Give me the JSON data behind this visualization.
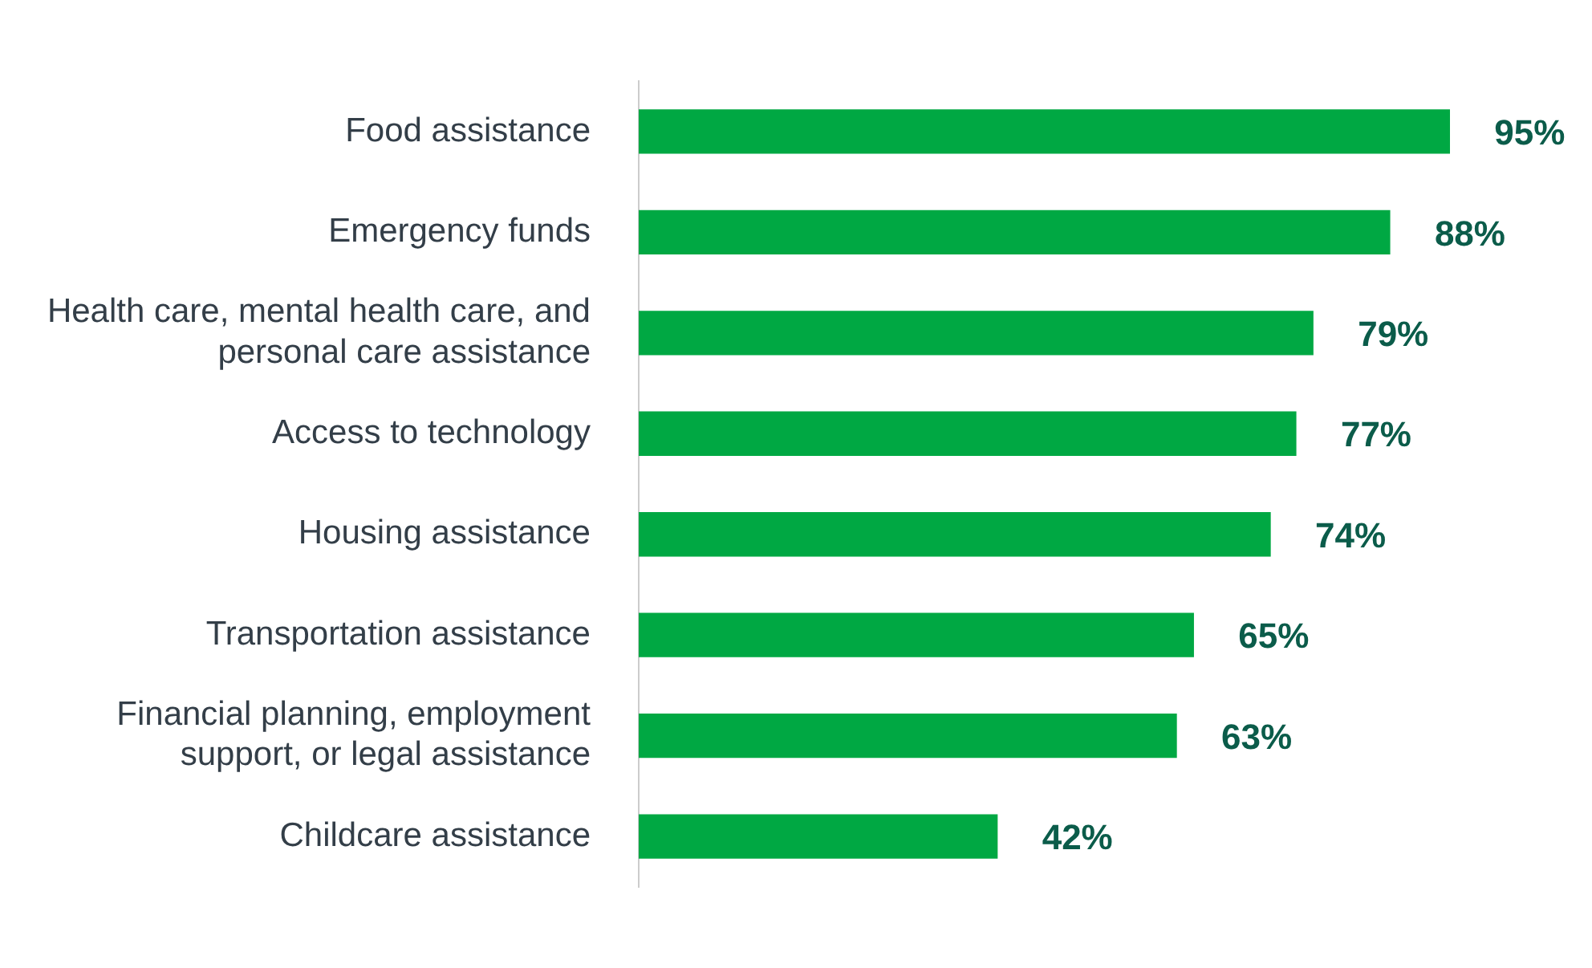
{
  "chart_data": {
    "type": "bar",
    "orientation": "horizontal",
    "categories": [
      "Food assistance",
      "Emergency funds",
      "Health care, mental health care, and personal care assistance",
      "Access to technology",
      "Housing assistance",
      "Transportation assistance",
      "Financial planning, employment support, or legal assistance",
      "Childcare assistance"
    ],
    "values": [
      95,
      88,
      79,
      77,
      74,
      65,
      63,
      42
    ],
    "value_labels": [
      "95%",
      "88%",
      "79%",
      "77%",
      "74%",
      "65%",
      "63%",
      "42%"
    ],
    "color": "#00a843",
    "legend": false
  }
}
